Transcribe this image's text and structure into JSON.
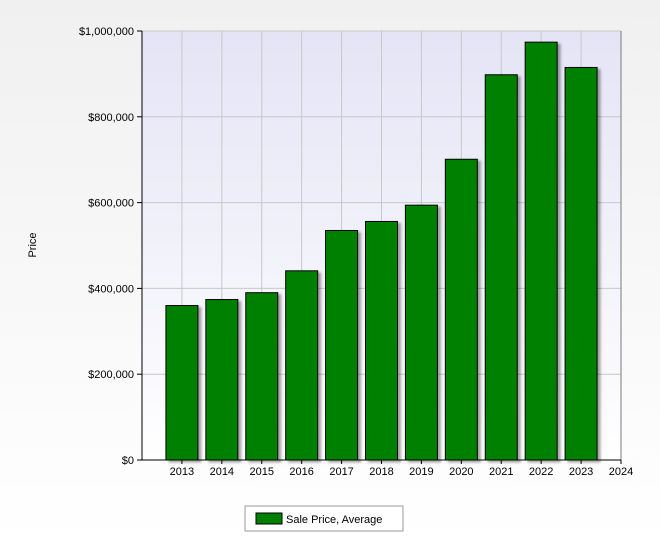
{
  "chart_data": {
    "type": "bar",
    "x_ticks": [
      "2013",
      "2014",
      "2015",
      "2016",
      "2017",
      "2018",
      "2019",
      "2020",
      "2021",
      "2022",
      "2023",
      "2024"
    ],
    "categories": [
      "2013",
      "2014",
      "2015",
      "2016",
      "2017",
      "2018",
      "2019",
      "2020",
      "2021",
      "2022",
      "2023"
    ],
    "series": [
      {
        "name": "Sale Price, Average",
        "color": "#008000",
        "values": [
          360000,
          374000,
          390000,
          441000,
          535000,
          556000,
          594000,
          701000,
          898000,
          974000,
          915000
        ]
      }
    ],
    "ylabel": "Price",
    "ylim": [
      0,
      1000000
    ],
    "y_ticks": [
      0,
      200000,
      400000,
      600000,
      800000,
      1000000
    ],
    "y_tick_labels": [
      "$0",
      "$200,000",
      "$400,000",
      "$600,000",
      "$800,000",
      "$1,000,000"
    ],
    "grid": true,
    "legend_position": "bottom-center",
    "colors": {
      "plot_background_top": "#e4e4f6",
      "plot_background_bottom": "#ffffff",
      "gridline": "#c8c8c8",
      "bar_fill": "#008000",
      "bar_outline": "#000000"
    }
  }
}
